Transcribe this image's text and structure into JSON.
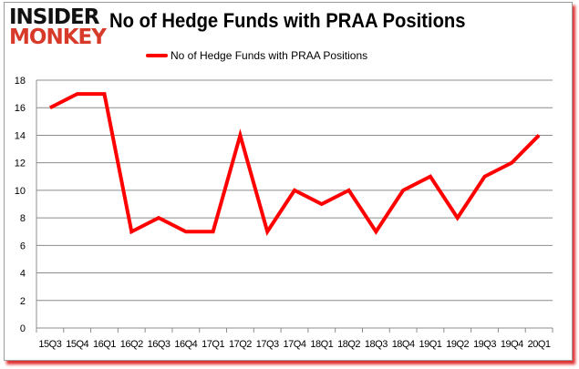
{
  "logo": {
    "line1": "INSIDER",
    "line2": "MONKEY"
  },
  "chart_data": {
    "type": "line",
    "title": "No of Hedge Funds with PRAA Positions",
    "categories": [
      "15Q3",
      "15Q4",
      "16Q1",
      "16Q2",
      "16Q3",
      "16Q4",
      "17Q1",
      "17Q2",
      "17Q3",
      "17Q4",
      "18Q1",
      "18Q2",
      "18Q3",
      "18Q4",
      "19Q1",
      "19Q2",
      "19Q3",
      "19Q4",
      "20Q1"
    ],
    "series": [
      {
        "name": "No of Hedge Funds with PRAA Positions",
        "color": "#ff0000",
        "values": [
          16,
          17,
          17,
          7,
          8,
          7,
          7,
          14,
          7,
          10,
          9,
          10,
          7,
          10,
          11,
          8,
          11,
          12,
          14
        ]
      }
    ],
    "yticks": [
      "0",
      "2",
      "4",
      "6",
      "8",
      "10",
      "12",
      "14",
      "16",
      "18"
    ],
    "ylim": [
      0,
      18
    ],
    "grid": true,
    "legend": "top-center"
  }
}
